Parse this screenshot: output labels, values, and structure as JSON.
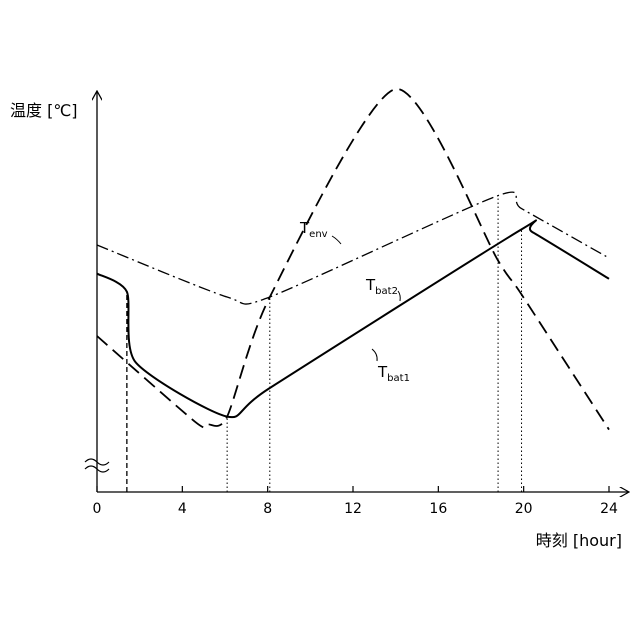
{
  "chart_data": {
    "type": "line",
    "ylabel": "温度 [℃]",
    "xlabel": "時刻 [hour]",
    "xlim": [
      0,
      24
    ],
    "x_ticks": [
      "0",
      "4",
      "8",
      "12",
      "16",
      "20",
      "24"
    ],
    "y_axis_break": true,
    "grid": false,
    "series": [
      {
        "name_main": "T",
        "name_sub": "env",
        "style": "dashed",
        "x": [
          0,
          4.6,
          5.2,
          6.1,
          8.1,
          14,
          18.8,
          19.9,
          24
        ],
        "y": [
          0.4,
          0.07,
          0.06,
          0.09,
          0.55,
          1.35,
          0.69,
          0.56,
          0.04
        ]
      },
      {
        "name_main": "T",
        "name_sub": "bat1",
        "style": "solid",
        "x": [
          0,
          1.4,
          1.8,
          6.1,
          8.1,
          19.9,
          20.4,
          24
        ],
        "y": [
          0.64,
          0.57,
          0.3,
          0.09,
          0.2,
          0.81,
          0.8,
          0.62
        ]
      },
      {
        "name_main": "T",
        "name_sub": "bat2",
        "style": "dashdot",
        "x": [
          0,
          6.1,
          8.1,
          18.8,
          19.9,
          24
        ],
        "y": [
          0.75,
          0.55,
          0.55,
          0.94,
          0.89,
          0.7
        ]
      }
    ],
    "markers": [
      {
        "x": 1.4,
        "y": 0.57,
        "style": "dashed"
      },
      {
        "x": 6.1,
        "y": 0.09,
        "style": "dotted"
      },
      {
        "x": 8.1,
        "y": 0.55,
        "style": "dotted"
      },
      {
        "x": 18.8,
        "y": 0.94,
        "style": "dotted"
      },
      {
        "x": 19.9,
        "y": 0.81,
        "style": "dotted"
      }
    ]
  }
}
